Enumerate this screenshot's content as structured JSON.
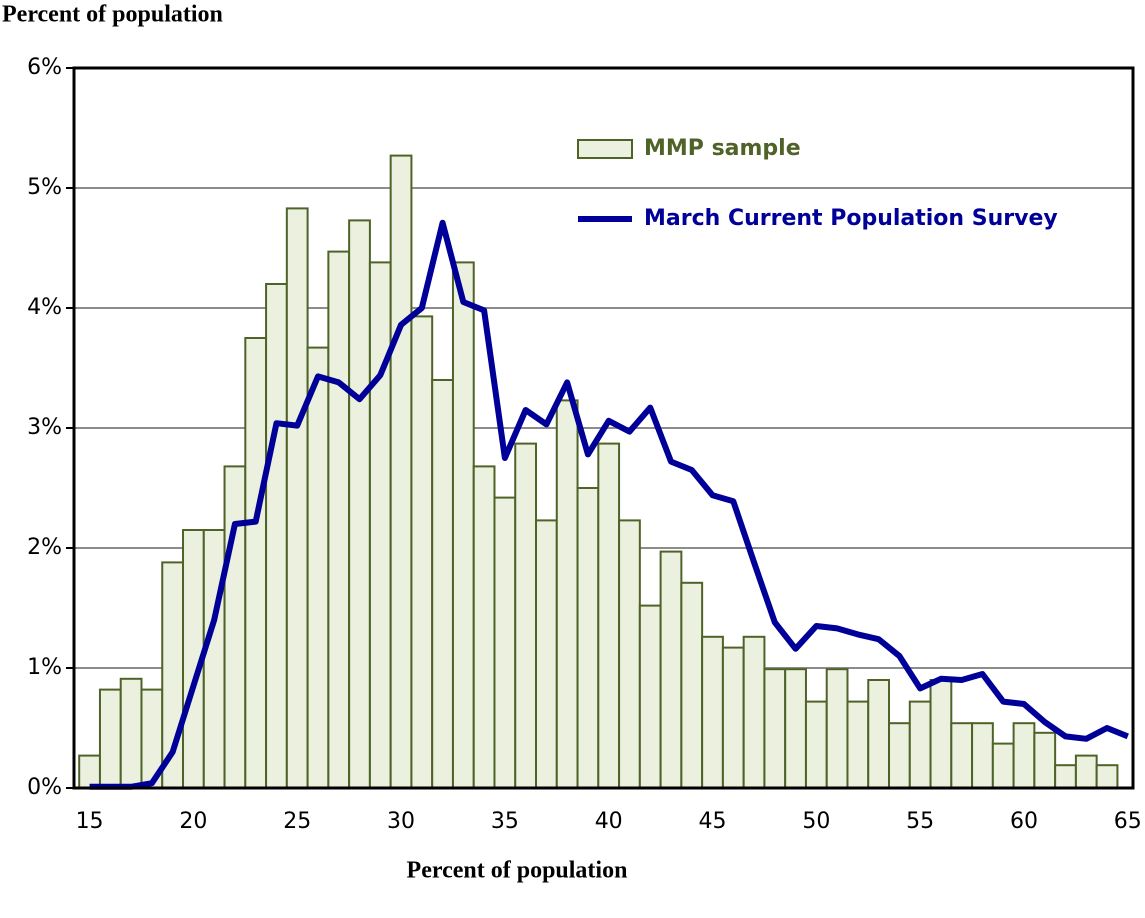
{
  "chart_data": {
    "type": "bar",
    "ylabel": "Percent of population",
    "xlabel": "Percent of population",
    "x": [
      15,
      16,
      17,
      18,
      19,
      20,
      21,
      22,
      23,
      24,
      25,
      26,
      27,
      28,
      29,
      30,
      31,
      32,
      33,
      34,
      35,
      36,
      37,
      38,
      39,
      40,
      41,
      42,
      43,
      44,
      45,
      46,
      47,
      48,
      49,
      50,
      51,
      52,
      53,
      54,
      55,
      56,
      57,
      58,
      59,
      60,
      61,
      62,
      63,
      64,
      65
    ],
    "xlim": [
      14.25,
      65.25
    ],
    "xticks": [
      15,
      20,
      25,
      30,
      35,
      40,
      45,
      50,
      55,
      60,
      65
    ],
    "ylim": [
      0,
      6
    ],
    "yticks": [
      {
        "value": 0,
        "label": "0%"
      },
      {
        "value": 1,
        "label": "1%"
      },
      {
        "value": 2,
        "label": "2%"
      },
      {
        "value": 3,
        "label": "3%"
      },
      {
        "value": 4,
        "label": "4%"
      },
      {
        "value": 5,
        "label": "5%"
      },
      {
        "value": 6,
        "label": "6%"
      }
    ],
    "grid": true,
    "legend": "upper right",
    "series": [
      {
        "name": "MMP sample",
        "type": "bar",
        "color": "#ebf1de",
        "edge_color": "#4f6228",
        "values": [
          0.27,
          0.82,
          0.91,
          0.82,
          1.88,
          2.15,
          2.15,
          2.68,
          3.75,
          4.2,
          4.83,
          3.67,
          4.47,
          4.73,
          4.38,
          5.27,
          3.93,
          3.4,
          4.38,
          2.68,
          2.42,
          2.87,
          2.23,
          3.23,
          2.5,
          2.87,
          2.23,
          1.52,
          1.97,
          1.71,
          1.26,
          1.17,
          1.26,
          0.99,
          0.99,
          0.72,
          0.99,
          0.72,
          0.9,
          0.54,
          0.72,
          0.9,
          0.54,
          0.54,
          0.37,
          0.54,
          0.46,
          0.19,
          0.27,
          0.19,
          0
        ]
      },
      {
        "name": "March Current Population Survey",
        "type": "line",
        "color": "#000099",
        "values": [
          0.01,
          0.01,
          0.01,
          0.04,
          0.3,
          0.85,
          1.4,
          2.2,
          2.22,
          3.04,
          3.02,
          3.43,
          3.38,
          3.24,
          3.44,
          3.86,
          4.0,
          4.71,
          4.05,
          3.98,
          2.75,
          3.15,
          3.03,
          3.38,
          2.78,
          3.06,
          2.97,
          3.17,
          2.72,
          2.65,
          2.44,
          2.39,
          1.88,
          1.38,
          1.16,
          1.35,
          1.33,
          1.28,
          1.24,
          1.1,
          0.83,
          0.91,
          0.9,
          0.95,
          0.72,
          0.7,
          0.55,
          0.43,
          0.41,
          0.5,
          0.43
        ]
      }
    ]
  }
}
